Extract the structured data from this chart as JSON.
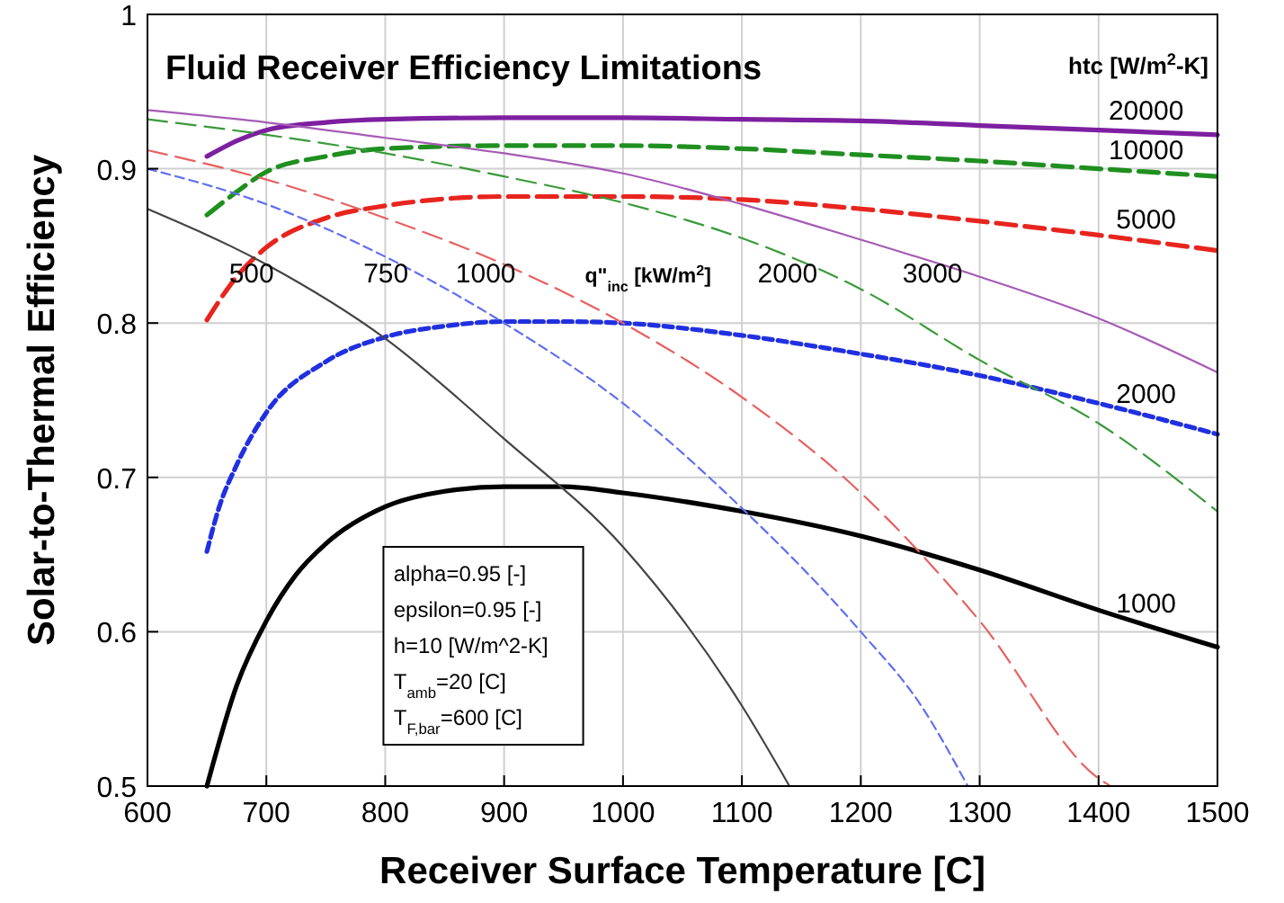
{
  "chart_data": {
    "type": "line",
    "title": "Fluid Receiver Efficiency Limitations",
    "xlabel": "Receiver Surface Temperature [C]",
    "ylabel": "Solar-to-Thermal Efficiency",
    "legend_title": "htc [W/m$^{2}$-K]",
    "xlim": [
      600,
      1500
    ],
    "ylim": [
      0.5,
      1
    ],
    "xticks": [
      600,
      700,
      800,
      900,
      1000,
      1100,
      1200,
      1300,
      1400,
      1500
    ],
    "yticks": [
      0.5,
      0.6,
      0.7,
      0.8,
      0.9,
      1
    ],
    "grid": true,
    "marker": "none",
    "annotations": [
      "q\"$_{inc}$ [kW/m$^{2}$]",
      "alpha=0.95 [-]",
      "epsilon=0.95 [-]",
      "h=10 [W/m^2-K]",
      "T$_{amb}$=20 [C]",
      "T$_{F,bar}$=600 [C]"
    ],
    "series": [
      {
        "name": "20000",
        "color": "#7d1fa0",
        "line_style": "solid",
        "x": [
          650,
          675,
          700,
          750,
          800,
          900,
          1000,
          1100,
          1200,
          1300,
          1400,
          1500
        ],
        "values": [
          0.908,
          0.918,
          0.925,
          0.93,
          0.932,
          0.933,
          0.933,
          0.932,
          0.931,
          0.928,
          0.925,
          0.922
        ]
      },
      {
        "name": "10000",
        "color": "#1f8f1f",
        "line_style": "dashed",
        "x": [
          650,
          675,
          700,
          750,
          800,
          900,
          1000,
          1100,
          1200,
          1300,
          1400,
          1500
        ],
        "values": [
          0.87,
          0.885,
          0.898,
          0.908,
          0.913,
          0.915,
          0.915,
          0.913,
          0.909,
          0.905,
          0.9,
          0.895
        ]
      },
      {
        "name": "5000",
        "color": "#e8241e",
        "line_style": "dashed",
        "x": [
          650,
          675,
          700,
          750,
          800,
          900,
          1000,
          1100,
          1200,
          1300,
          1400,
          1500
        ],
        "values": [
          0.802,
          0.83,
          0.849,
          0.868,
          0.876,
          0.882,
          0.882,
          0.88,
          0.874,
          0.866,
          0.857,
          0.847
        ]
      },
      {
        "name": "2000",
        "color": "#2030e0",
        "line_style": "dotted",
        "x": [
          650,
          660,
          675,
          700,
          750,
          800,
          850,
          900,
          950,
          1000,
          1100,
          1200,
          1300,
          1400,
          1500
        ],
        "values": [
          0.652,
          0.68,
          0.708,
          0.742,
          0.775,
          0.791,
          0.798,
          0.801,
          0.801,
          0.8,
          0.792,
          0.78,
          0.766,
          0.748,
          0.728
        ]
      },
      {
        "name": "1000",
        "color": "#000000",
        "line_style": "solid",
        "x": [
          650,
          675,
          700,
          725,
          750,
          800,
          850,
          900,
          950,
          1000,
          1100,
          1200,
          1300,
          1400,
          1500
        ],
        "values": [
          0.5,
          0.565,
          0.607,
          0.637,
          0.657,
          0.681,
          0.691,
          0.694,
          0.694,
          0.69,
          0.678,
          0.662,
          0.64,
          0.614,
          0.59
        ]
      },
      {
        "name": "500",
        "color": "#444444",
        "line_style": "solid",
        "x": [
          600,
          700,
          800,
          900,
          1000,
          1100,
          1140
        ],
        "values": [
          0.874,
          0.838,
          0.79,
          0.725,
          0.655,
          0.552,
          0.5
        ]
      },
      {
        "name": "750",
        "color": "#6070f0",
        "line_style": "dotted",
        "x": [
          600,
          700,
          800,
          900,
          1000,
          1100,
          1200,
          1250,
          1290
        ],
        "values": [
          0.9,
          0.877,
          0.843,
          0.8,
          0.748,
          0.68,
          0.6,
          0.553,
          0.5
        ]
      },
      {
        "name": "1000",
        "color": "#e86060",
        "line_style": "dashed",
        "x": [
          600,
          700,
          800,
          900,
          1000,
          1100,
          1200,
          1300,
          1400,
          1410
        ],
        "values": [
          0.912,
          0.893,
          0.868,
          0.838,
          0.8,
          0.752,
          0.69,
          0.607,
          0.505,
          0.5
        ]
      },
      {
        "name": "2000",
        "color": "#3a9a3a",
        "line_style": "dashed",
        "x": [
          600,
          700,
          800,
          900,
          1000,
          1100,
          1200,
          1300,
          1400,
          1500
        ],
        "values": [
          0.932,
          0.922,
          0.91,
          0.895,
          0.878,
          0.855,
          0.822,
          0.776,
          0.735,
          0.678
        ]
      },
      {
        "name": "3000",
        "color": "#a55bb5",
        "line_style": "solid",
        "x": [
          600,
          700,
          800,
          900,
          1000,
          1100,
          1200,
          1300,
          1400,
          1500
        ],
        "values": [
          0.938,
          0.93,
          0.92,
          0.91,
          0.897,
          0.877,
          0.854,
          0.83,
          0.803,
          0.768
        ]
      }
    ]
  }
}
